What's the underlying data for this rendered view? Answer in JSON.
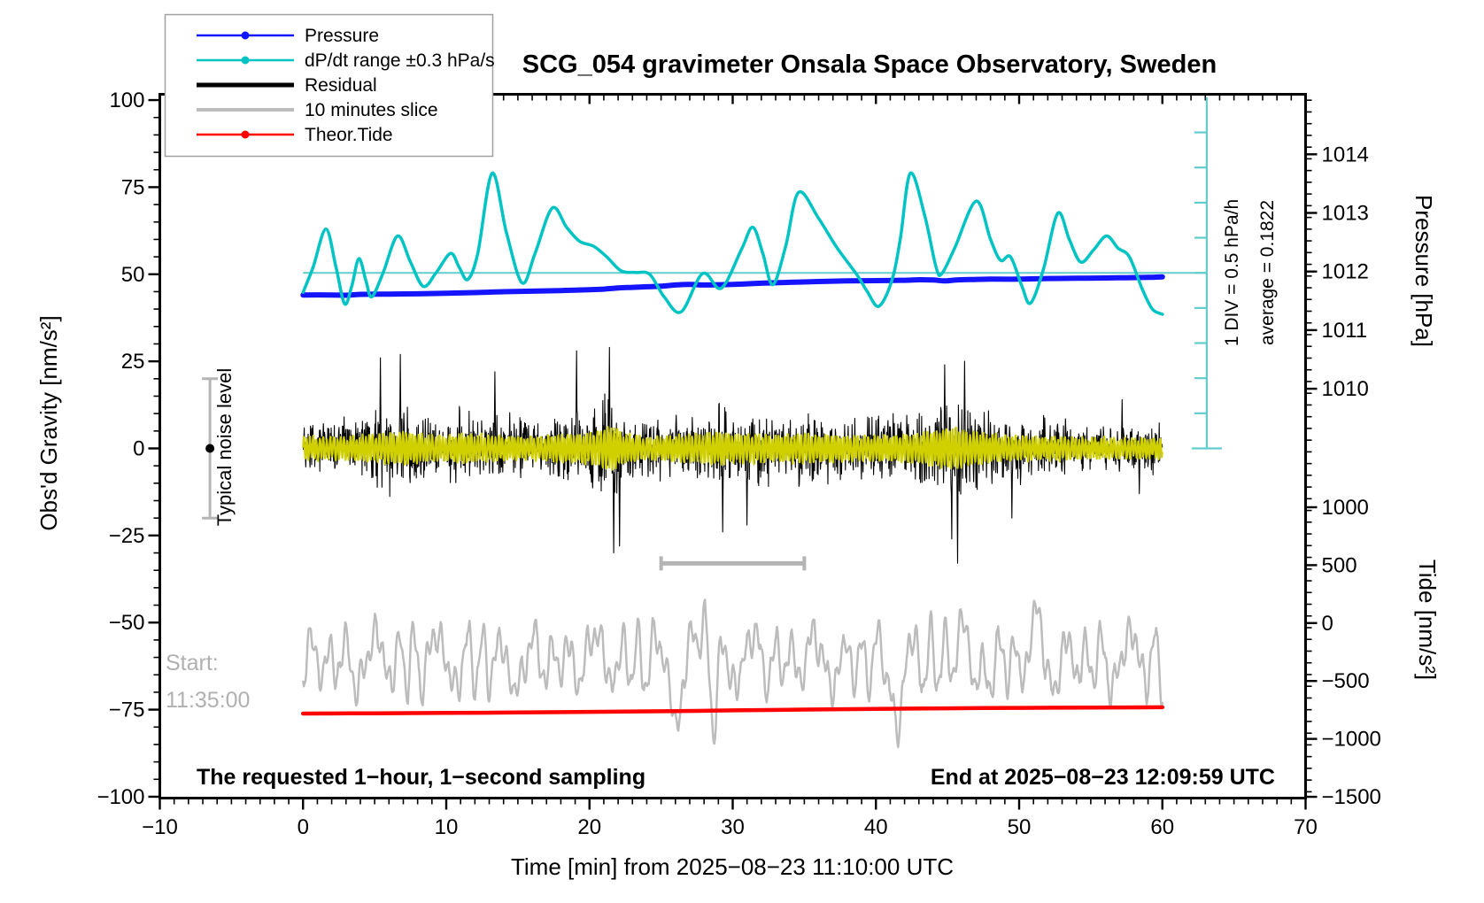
{
  "title": "SCG_054 gravimeter Onsala Space Observatory, Sweden",
  "texts": {
    "subtitle_left": "The requested 1−hour, 1−second sampling",
    "end_label": "End at 2025−08−23 12:09:59 UTC",
    "start_label_line1": "Start:",
    "start_label_line2": "11:35:00",
    "div_scale_label": "1 DIV = 0.5 hPa/h",
    "average_label": "average = 0.1822",
    "noise_label": "Typical noise level"
  },
  "axes": {
    "x": {
      "label": "Time [min] from 2025−08−23 11:10:00 UTC",
      "range": [
        -10,
        70
      ],
      "major_tick_values": [
        -10,
        0,
        10,
        20,
        30,
        40,
        50,
        60,
        70
      ],
      "major_tick_labels": [
        "−10",
        "0",
        "10",
        "20",
        "30",
        "40",
        "50",
        "60",
        "70"
      ],
      "minor_step": 1
    },
    "gravity": {
      "label": "Obs'd Gravity [nm/s²]",
      "range": [
        -100,
        100
      ],
      "major_tick_values": [
        100,
        75,
        50,
        25,
        0,
        -25,
        -50,
        -75,
        -100
      ],
      "major_tick_labels": [
        "100",
        "75",
        "50",
        "25",
        "0",
        "−25",
        "−50",
        "−75",
        "−100"
      ],
      "minor_step": 5
    },
    "pressure": {
      "label": "Pressure [hPa]",
      "major_tick_values": [
        1014,
        1013,
        1012,
        1011,
        1010
      ],
      "major_tick_labels": [
        "1014",
        "1013",
        "1012",
        "1011",
        "1010"
      ],
      "minor_step_hpa": 0.2
    },
    "tide": {
      "label": "Tide [nm/s²]",
      "major_tick_values": [
        1000,
        500,
        0,
        -500,
        -1000,
        -1500
      ],
      "major_tick_labels": [
        "1000",
        "500",
        "0",
        "−500",
        "−1000",
        "−1500"
      ],
      "minor_step": 100
    }
  },
  "legend": {
    "items": [
      {
        "label": "Pressure",
        "color": "#1414ff",
        "line_width": 2.5,
        "dot": true
      },
      {
        "label": "dP/dt range ±0.3 hPa/s",
        "color": "#00c3c3",
        "line_width": 2.5,
        "dot": true
      },
      {
        "label": "Residual",
        "color": "#000000",
        "line_width": 5,
        "dot": false
      },
      {
        "label": "10 minutes slice",
        "color": "#bcbcbc",
        "line_width": 4,
        "dot": false
      },
      {
        "label": "Theor.Tide",
        "color": "#ff0000",
        "line_width": 2.5,
        "dot": true
      }
    ]
  },
  "chart_data": {
    "type": "line",
    "x_unit": "minutes from 2025-08-23 11:10:00 UTC",
    "series": [
      {
        "name": "Pressure",
        "axis": "pressure",
        "unit": "hPa",
        "color": "#1414ff",
        "width": 6,
        "points": [
          [
            0,
            1011.6
          ],
          [
            2,
            1011.6
          ],
          [
            3,
            1011.595
          ],
          [
            4,
            1011.61
          ],
          [
            6,
            1011.615
          ],
          [
            8,
            1011.62
          ],
          [
            10,
            1011.63
          ],
          [
            12,
            1011.64
          ],
          [
            14,
            1011.655
          ],
          [
            16,
            1011.665
          ],
          [
            18,
            1011.675
          ],
          [
            20,
            1011.69
          ],
          [
            21,
            1011.7
          ],
          [
            22,
            1011.72
          ],
          [
            23,
            1011.73
          ],
          [
            24,
            1011.74
          ],
          [
            25,
            1011.75
          ],
          [
            26,
            1011.77
          ],
          [
            27,
            1011.78
          ],
          [
            28,
            1011.77
          ],
          [
            29,
            1011.775
          ],
          [
            30,
            1011.78
          ],
          [
            31,
            1011.79
          ],
          [
            32,
            1011.8
          ],
          [
            34,
            1011.815
          ],
          [
            36,
            1011.83
          ],
          [
            38,
            1011.84
          ],
          [
            40,
            1011.845
          ],
          [
            42,
            1011.85
          ],
          [
            43,
            1011.86
          ],
          [
            44,
            1011.855
          ],
          [
            44.8,
            1011.84
          ],
          [
            45.6,
            1011.855
          ],
          [
            47,
            1011.865
          ],
          [
            48,
            1011.87
          ],
          [
            50,
            1011.87
          ],
          [
            52,
            1011.88
          ],
          [
            54,
            1011.885
          ],
          [
            56,
            1011.89
          ],
          [
            57.5,
            1011.895
          ],
          [
            59,
            1011.9
          ],
          [
            60,
            1011.91
          ]
        ]
      },
      {
        "name": "dP/dt range ±0.3 hPa/s",
        "axis": "gravity",
        "unit": "plotted on gravity axis [nm/s²]",
        "color": "#00c3c3",
        "width": 3.5,
        "points": [
          [
            0,
            44.8
          ],
          [
            0.7,
            52
          ],
          [
            1.6,
            63
          ],
          [
            2.3,
            52
          ],
          [
            2.9,
            41.5
          ],
          [
            3.4,
            46.5
          ],
          [
            3.9,
            54.5
          ],
          [
            4.4,
            48
          ],
          [
            4.8,
            43.5
          ],
          [
            5.6,
            50.5
          ],
          [
            6.6,
            61
          ],
          [
            7.5,
            53.5
          ],
          [
            8.4,
            46.5
          ],
          [
            9.3,
            50.5
          ],
          [
            10.3,
            56
          ],
          [
            10.9,
            52
          ],
          [
            11.5,
            48.5
          ],
          [
            12.2,
            56
          ],
          [
            13.2,
            79
          ],
          [
            14.2,
            62
          ],
          [
            15.3,
            47.5
          ],
          [
            16.2,
            56
          ],
          [
            17.4,
            69
          ],
          [
            18.4,
            63.5
          ],
          [
            19.3,
            59.5
          ],
          [
            20.3,
            58
          ],
          [
            21.2,
            55
          ],
          [
            22.2,
            51
          ],
          [
            23.2,
            50.5
          ],
          [
            24.2,
            50
          ],
          [
            25.2,
            43.6
          ],
          [
            26.4,
            39.2
          ],
          [
            27.9,
            50.2
          ],
          [
            29.2,
            46
          ],
          [
            30.6,
            57
          ],
          [
            31.4,
            63.5
          ],
          [
            32.1,
            56
          ],
          [
            32.8,
            47
          ],
          [
            33.7,
            58
          ],
          [
            34.6,
            73.5
          ],
          [
            36,
            66
          ],
          [
            37.3,
            57.5
          ],
          [
            38.65,
            50
          ],
          [
            39.4,
            45
          ],
          [
            40.2,
            40.8
          ],
          [
            41.1,
            48
          ],
          [
            41.7,
            60
          ],
          [
            42.4,
            79
          ],
          [
            43.4,
            67
          ],
          [
            44.2,
            52
          ],
          [
            44.6,
            50.2
          ],
          [
            45.5,
            57.5
          ],
          [
            47,
            71
          ],
          [
            48,
            60
          ],
          [
            48.7,
            54
          ],
          [
            49.4,
            55
          ],
          [
            50.2,
            46.5
          ],
          [
            50.8,
            41.7
          ],
          [
            51.7,
            51.5
          ],
          [
            52.7,
            67.5
          ],
          [
            53.5,
            60
          ],
          [
            54.3,
            53.5
          ],
          [
            55.2,
            57
          ],
          [
            56.1,
            61
          ],
          [
            56.9,
            57.5
          ],
          [
            57.7,
            55
          ],
          [
            58.6,
            45.7
          ],
          [
            59.3,
            40
          ],
          [
            60,
            38.5
          ]
        ]
      },
      {
        "name": "Residual",
        "axis": "gravity",
        "unit": "nm/s²",
        "color": "#000000",
        "width": 1.1,
        "noise": {
          "seed": 20250823,
          "samples": 2200,
          "envelope": [
            [
              0,
              9
            ],
            [
              3,
              9
            ],
            [
              5,
              11
            ],
            [
              6.5,
              13
            ],
            [
              7,
              14
            ],
            [
              8,
              11
            ],
            [
              10,
              10
            ],
            [
              11,
              12
            ],
            [
              12,
              11
            ],
            [
              14,
              10
            ],
            [
              16,
              9
            ],
            [
              18,
              11
            ],
            [
              20,
              12
            ],
            [
              21,
              16
            ],
            [
              21.7,
              18
            ],
            [
              22.3,
              12
            ],
            [
              24,
              9
            ],
            [
              26,
              10
            ],
            [
              28,
              12
            ],
            [
              29,
              13
            ],
            [
              30,
              11
            ],
            [
              31.5,
              12
            ],
            [
              33,
              10
            ],
            [
              35,
              12
            ],
            [
              36,
              11
            ],
            [
              38,
              10
            ],
            [
              40,
              10
            ],
            [
              42,
              11
            ],
            [
              43.5,
              13
            ],
            [
              44.5,
              15
            ],
            [
              45.5,
              17
            ],
            [
              46.5,
              14
            ],
            [
              47.5,
              12
            ],
            [
              49,
              10
            ],
            [
              51,
              9
            ],
            [
              53,
              9
            ],
            [
              55,
              8
            ],
            [
              57,
              8
            ],
            [
              59,
              8
            ],
            [
              60,
              8
            ]
          ],
          "spikes": [
            [
              5.4,
              26
            ],
            [
              6.8,
              27
            ],
            [
              13.4,
              22
            ],
            [
              19.1,
              28
            ],
            [
              21.4,
              29
            ],
            [
              21.7,
              -30
            ],
            [
              22.1,
              -28
            ],
            [
              29.3,
              -24
            ],
            [
              31,
              -22
            ],
            [
              44.8,
              24
            ],
            [
              45.3,
              -26
            ],
            [
              45.7,
              -33
            ],
            [
              46.2,
              25
            ],
            [
              49.5,
              -20
            ],
            [
              57.2,
              14
            ],
            [
              58.4,
              -13
            ]
          ]
        }
      },
      {
        "name": "Residual smoothed (yellow)",
        "axis": "gravity",
        "unit": "nm/s²",
        "color": "#d0d000",
        "width": 2.2,
        "oscillation": {
          "seed": 9,
          "samples": 1600,
          "amp_scale": 0.34,
          "carrier": 27.3,
          "fm_freq": 1.7,
          "fm_depth": 1.2,
          "secondary_freq": 9.1,
          "secondary_amp": 0.5,
          "noise_amp": 0.6
        }
      },
      {
        "name": "10 minutes slice",
        "axis": "gravity",
        "unit": "plotted on gravity axis [nm/s²]",
        "color": "#bcbcbc",
        "width": 2.5,
        "slice": {
          "seed": 77,
          "samples": 1100,
          "base": -61,
          "components": [
            [
              7.5,
              4.05,
              0.7
            ],
            [
              3.5,
              12.3,
              2.6
            ],
            [
              2.5,
              6.8,
              5.1
            ]
          ],
          "fm": [
            1.9,
            1.19,
            4.0
          ],
          "noise_amp": 1.8,
          "events": [
            [
              27.8,
              14
            ],
            [
              46,
              14
            ],
            [
              51.4,
              11
            ],
            [
              26.2,
              -12
            ],
            [
              28.6,
              -13
            ],
            [
              41.6,
              -14
            ],
            [
              46.8,
              -15
            ]
          ],
          "event_sigma": 0.3
        }
      },
      {
        "name": "Theor.Tide",
        "axis": "tide",
        "unit": "nm/s²",
        "color": "#ff0000",
        "width": 4.5,
        "points": [
          [
            0,
            -781
          ],
          [
            5,
            -779
          ],
          [
            10,
            -776
          ],
          [
            15,
            -772
          ],
          [
            20,
            -767
          ],
          [
            25,
            -761
          ],
          [
            30,
            -754
          ],
          [
            35,
            -747
          ],
          [
            40,
            -741
          ],
          [
            45,
            -736
          ],
          [
            50,
            -732
          ],
          [
            55,
            -729
          ],
          [
            60,
            -727
          ]
        ]
      }
    ],
    "annotations": {
      "average_line": {
        "axis": "gravity",
        "y": 50.4,
        "x_range": [
          0,
          63.1
        ],
        "color": "#63cccc",
        "width": 2
      },
      "div_scale_bar": {
        "x": 63.1,
        "gravity_top": 100.8,
        "gravity_bottom": 0,
        "divisions": 10,
        "color": "#63cccc",
        "tick_len": 14,
        "cap_half_width": 17
      },
      "ten_min_scale_bar": {
        "x_range": [
          25,
          35
        ],
        "gravity_y": -33,
        "color": "#b4b4b4",
        "cap_half_height": 8
      },
      "noise_error_bar": {
        "x": -6.5,
        "center": 0,
        "half_span": 20,
        "bar_color": "#b4b4b4",
        "dot_color": "#000000",
        "cap_half_width": 9
      }
    },
    "legend_position": "top-left",
    "grid": false
  }
}
